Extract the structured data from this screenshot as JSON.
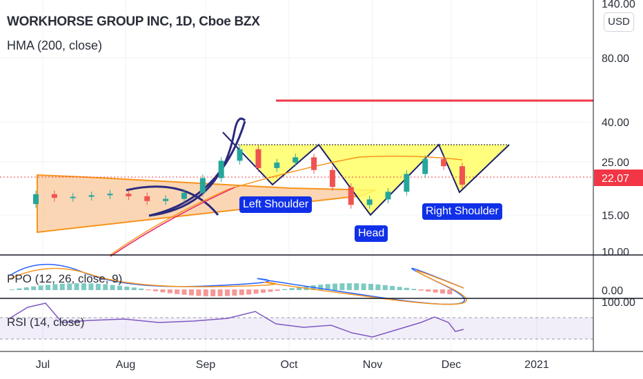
{
  "header": {
    "title": "WORKHORSE GROUP INC, 1D, Cboe BZX",
    "indicator": "HMA (200, close)",
    "currency": "USD"
  },
  "annotations": {
    "left_shoulder": "Left Shoulder",
    "head": "Head",
    "right_shoulder": "Right Shoulder"
  },
  "price_axis": {
    "current_price": "22.07",
    "current_color": "#f23645",
    "ticks": [
      "140.00",
      "80.00",
      "40.00",
      "25.00",
      "15.00",
      "10.00"
    ]
  },
  "ppo": {
    "label": "PPO (12, 26, close, 9)",
    "tick": "0.00"
  },
  "rsi": {
    "label": "RSI (14, close)",
    "tick": "100.00"
  },
  "time_axis": {
    "labels": [
      "Jul",
      "Aug",
      "Sep",
      "Oct",
      "Nov",
      "Dec",
      "2021"
    ]
  },
  "colors": {
    "up": "#26a69a",
    "down": "#ef5350",
    "pattern_fill": "#ffff66",
    "triangle_fill": "#f9c89b",
    "resistance_line": "#f23645",
    "badge": "#1030e8"
  },
  "chart_data": {
    "type": "candlestick",
    "scale": "log",
    "x": [
      "Jun 29",
      "Jul 6",
      "Jul 13",
      "Jul 20",
      "Jul 27",
      "Aug 3",
      "Aug 10",
      "Aug 17",
      "Aug 24",
      "Aug 31",
      "Sep 8",
      "Sep 14",
      "Sep 21",
      "Sep 28",
      "Oct 5",
      "Oct 12",
      "Oct 19",
      "Oct 26",
      "Nov 2",
      "Nov 9",
      "Nov 16",
      "Nov 23",
      "Nov 30",
      "Dec 4"
    ],
    "close": [
      18.5,
      17.8,
      18.0,
      18.3,
      18.6,
      18.1,
      17.2,
      17.6,
      18.8,
      22.0,
      26.5,
      30.0,
      24.5,
      26.0,
      27.5,
      24.0,
      20.0,
      16.5,
      17.5,
      19.0,
      23.0,
      27.0,
      25.0,
      20.5
    ],
    "ylim": [
      9.5,
      140
    ],
    "resistance_level": 52,
    "neckline": 30,
    "current_price": 22.07
  }
}
